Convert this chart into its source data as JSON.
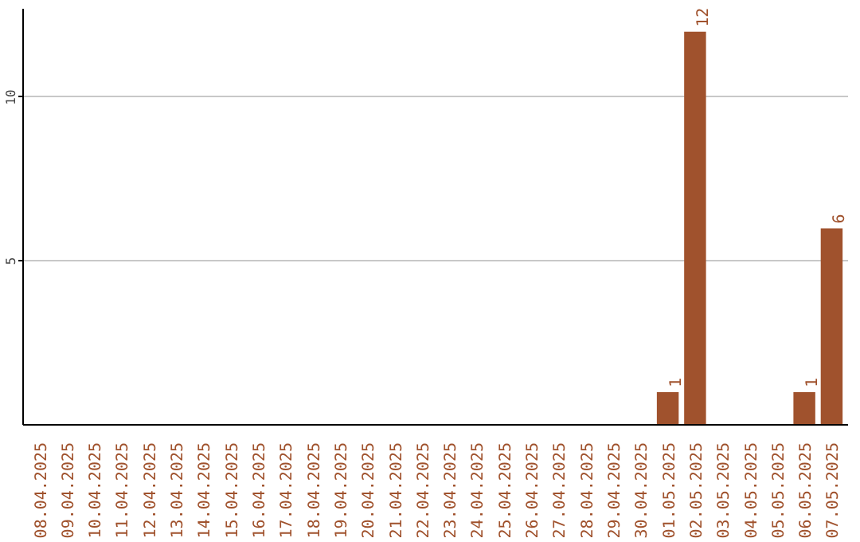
{
  "chart_data": {
    "type": "bar",
    "categories": [
      "08.04.2025",
      "09.04.2025",
      "10.04.2025",
      "11.04.2025",
      "12.04.2025",
      "13.04.2025",
      "14.04.2025",
      "15.04.2025",
      "16.04.2025",
      "17.04.2025",
      "18.04.2025",
      "19.04.2025",
      "20.04.2025",
      "21.04.2025",
      "22.04.2025",
      "23.04.2025",
      "24.04.2025",
      "25.04.2025",
      "26.04.2025",
      "27.04.2025",
      "28.04.2025",
      "29.04.2025",
      "30.04.2025",
      "01.05.2025",
      "02.05.2025",
      "03.05.2025",
      "04.05.2025",
      "05.05.2025",
      "06.05.2025",
      "07.05.2025"
    ],
    "values": [
      0,
      0,
      0,
      0,
      0,
      0,
      0,
      0,
      0,
      0,
      0,
      0,
      0,
      0,
      0,
      0,
      0,
      0,
      0,
      0,
      0,
      0,
      0,
      1,
      12,
      0,
      0,
      0,
      1,
      6
    ],
    "value_labels": [
      null,
      null,
      null,
      null,
      null,
      null,
      null,
      null,
      null,
      null,
      null,
      null,
      null,
      null,
      null,
      null,
      null,
      null,
      null,
      null,
      null,
      null,
      null,
      "1",
      "12",
      null,
      null,
      null,
      "1",
      "6"
    ],
    "color": "#a0522d",
    "ylim": [
      0,
      12.7
    ],
    "yticks": [
      5,
      10
    ],
    "grid": "y"
  }
}
